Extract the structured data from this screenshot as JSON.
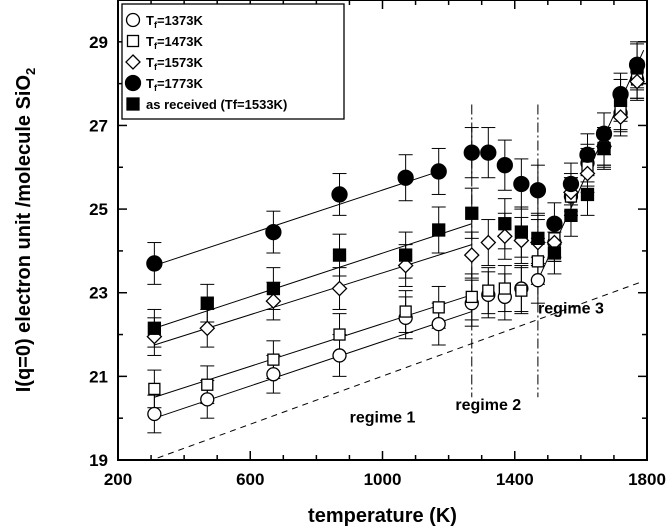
{
  "chart_data": {
    "type": "scatter",
    "title": "",
    "xlabel": "temperature (K)",
    "ylabel": "I(q=0) electron unit /molecule SiO2",
    "xlim": [
      200,
      1800
    ],
    "ylim": [
      19,
      30
    ],
    "x_ticks": [
      200,
      600,
      1000,
      1400,
      1800
    ],
    "y_ticks": [
      19,
      21,
      23,
      25,
      27,
      29
    ],
    "grid": false,
    "legend_position": "top-left",
    "series": [
      {
        "name": "Tf=1373K",
        "marker": "open-circle",
        "x": [
          310,
          470,
          670,
          870,
          1070,
          1170,
          1270,
          1320,
          1370,
          1420,
          1470,
          1520,
          1570,
          1620,
          1670,
          1720,
          1770
        ],
        "y": [
          20.1,
          20.45,
          21.05,
          21.5,
          22.4,
          22.25,
          22.75,
          22.95,
          22.9,
          23.1,
          23.3,
          24.2,
          25.3,
          26.1,
          26.5,
          27.3,
          28.1
        ],
        "err": [
          0.45,
          0.45,
          0.45,
          0.5,
          0.5,
          0.5,
          0.55,
          0.55,
          0.55,
          0.55,
          0.55,
          0.45,
          0.45,
          0.45,
          0.45,
          0.45,
          0.45
        ],
        "fit": {
          "x": [
            310,
            1270
          ],
          "y": [
            20.0,
            22.55
          ]
        }
      },
      {
        "name": "Tf=1473K",
        "marker": "open-square",
        "x": [
          310,
          470,
          670,
          870,
          1070,
          1170,
          1270,
          1320,
          1370,
          1420,
          1470,
          1520,
          1570,
          1620,
          1670,
          1720,
          1770
        ],
        "y": [
          20.7,
          20.8,
          21.4,
          22.0,
          22.55,
          22.65,
          22.9,
          23.05,
          23.1,
          23.05,
          23.75,
          24.3,
          25.3,
          26.0,
          26.45,
          27.35,
          28.1
        ],
        "err": [
          0.45,
          0.45,
          0.45,
          0.5,
          0.5,
          0.5,
          0.55,
          0.55,
          0.55,
          0.55,
          0.55,
          0.45,
          0.45,
          0.45,
          0.45,
          0.45,
          0.45
        ],
        "fit": {
          "x": [
            310,
            1270
          ],
          "y": [
            20.5,
            22.95
          ]
        }
      },
      {
        "name": "Tf=1573K",
        "marker": "open-diamond",
        "x": [
          310,
          470,
          670,
          870,
          1070,
          1270,
          1320,
          1370,
          1420,
          1470,
          1520,
          1570,
          1620,
          1670,
          1720,
          1770
        ],
        "y": [
          21.95,
          22.15,
          22.8,
          23.1,
          23.65,
          23.9,
          24.2,
          24.35,
          24.25,
          24.2,
          24.2,
          25.4,
          25.85,
          26.5,
          27.2,
          28.05
        ],
        "err": [
          0.45,
          0.45,
          0.45,
          0.5,
          0.5,
          0.55,
          0.55,
          0.55,
          0.55,
          0.55,
          0.45,
          0.45,
          0.45,
          0.45,
          0.45,
          0.45
        ],
        "fit": {
          "x": [
            310,
            1270
          ],
          "y": [
            21.75,
            24.15
          ]
        }
      },
      {
        "name": "Tf=1773K",
        "marker": "filled-circle",
        "x": [
          310,
          670,
          870,
          1070,
          1170,
          1270,
          1320,
          1370,
          1420,
          1470,
          1520,
          1570,
          1620,
          1670,
          1720,
          1770
        ],
        "y": [
          23.7,
          24.45,
          25.35,
          25.75,
          25.9,
          26.35,
          26.35,
          26.05,
          25.6,
          25.45,
          24.65,
          25.6,
          26.3,
          26.8,
          27.75,
          28.45
        ],
        "err": [
          0.5,
          0.5,
          0.5,
          0.55,
          0.55,
          0.6,
          0.6,
          0.6,
          0.6,
          0.6,
          0.5,
          0.5,
          0.5,
          0.5,
          0.5,
          0.55
        ],
        "fit": {
          "x": [
            310,
            1170
          ],
          "y": [
            23.65,
            25.9
          ]
        }
      },
      {
        "name": "as received (Tf=1533K)",
        "marker": "filled-square",
        "x": [
          310,
          470,
          670,
          870,
          1070,
          1170,
          1270,
          1370,
          1420,
          1470,
          1520,
          1570,
          1620,
          1670,
          1720,
          1770
        ],
        "y": [
          22.15,
          22.75,
          23.1,
          23.9,
          23.9,
          24.5,
          24.9,
          24.65,
          24.45,
          24.3,
          23.95,
          24.85,
          25.35,
          26.45,
          27.6,
          28.4
        ],
        "err": [
          0.45,
          0.45,
          0.5,
          0.5,
          0.55,
          0.55,
          0.6,
          0.6,
          0.6,
          0.6,
          0.5,
          0.5,
          0.5,
          0.5,
          0.5,
          0.55
        ],
        "fit": {
          "x": [
            310,
            1270
          ],
          "y": [
            22.15,
            24.65
          ]
        }
      }
    ],
    "regime3_fit": {
      "x": [
        1470,
        1790
      ],
      "y": [
        23.3,
        28.8
      ]
    },
    "dashed_reference": {
      "x": [
        320,
        1780
      ],
      "y": [
        19.05,
        23.25
      ]
    },
    "regime_boundaries": [
      1270,
      1470
    ],
    "annotations": [
      {
        "text": "regime 1",
        "x": 1000,
        "y": 19.9
      },
      {
        "text": "regime 2",
        "x": 1320,
        "y": 20.2
      },
      {
        "text": "regime 3",
        "x": 1570,
        "y": 22.5
      }
    ]
  }
}
